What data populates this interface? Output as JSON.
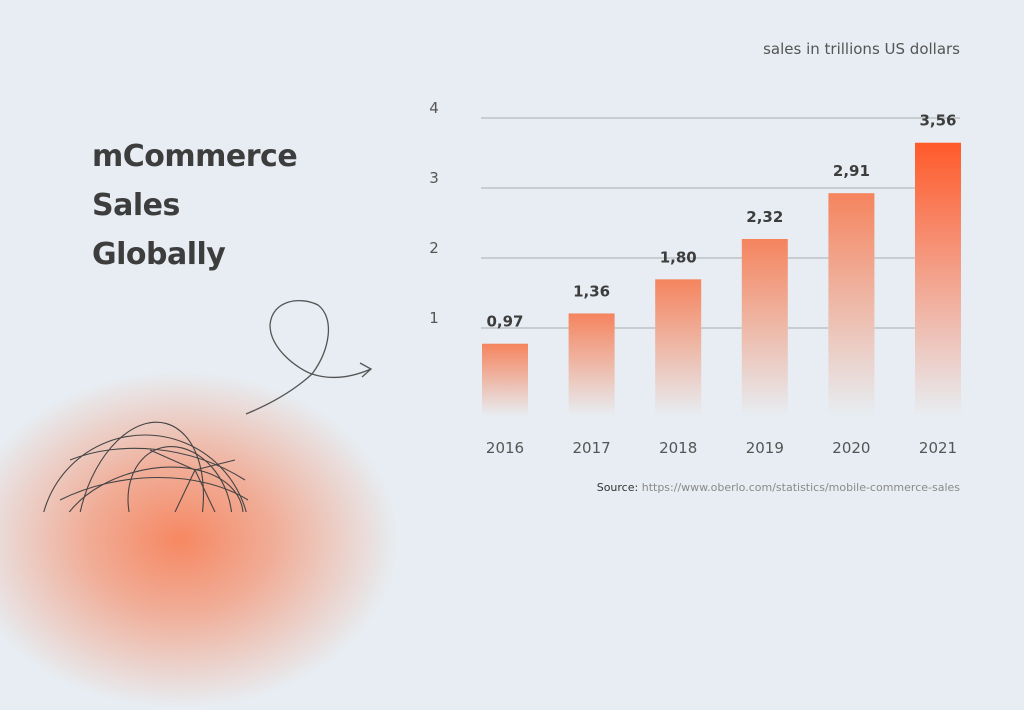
{
  "title_lines": [
    "mCommerce",
    "Sales",
    "Globally"
  ],
  "unit_label": "sales in trillions US dollars",
  "source": {
    "label": "Source:",
    "url": "https://www.oberlo.com/statistics/mobile-commerce-sales"
  },
  "colors": {
    "background": "#e7edf2",
    "bar": "#f5845e",
    "bar_highlight": "#ff5a2a",
    "text": "#3d3d3d",
    "grid": "#a9adb2"
  },
  "chart_data": {
    "type": "bar",
    "title": "mCommerce Sales Globally",
    "ylabel": "sales in trillions US dollars",
    "xlabel": "",
    "categories": [
      "2016",
      "2017",
      "2018",
      "2019",
      "2020",
      "2021"
    ],
    "values": [
      0.97,
      1.36,
      1.8,
      2.32,
      2.91,
      3.56
    ],
    "value_labels": [
      "0,97",
      "1,36",
      "1,80",
      "2,32",
      "2,91",
      "3,56"
    ],
    "yticks": [
      1,
      2,
      3,
      4
    ],
    "ylim": [
      0,
      4
    ],
    "grid": true
  }
}
